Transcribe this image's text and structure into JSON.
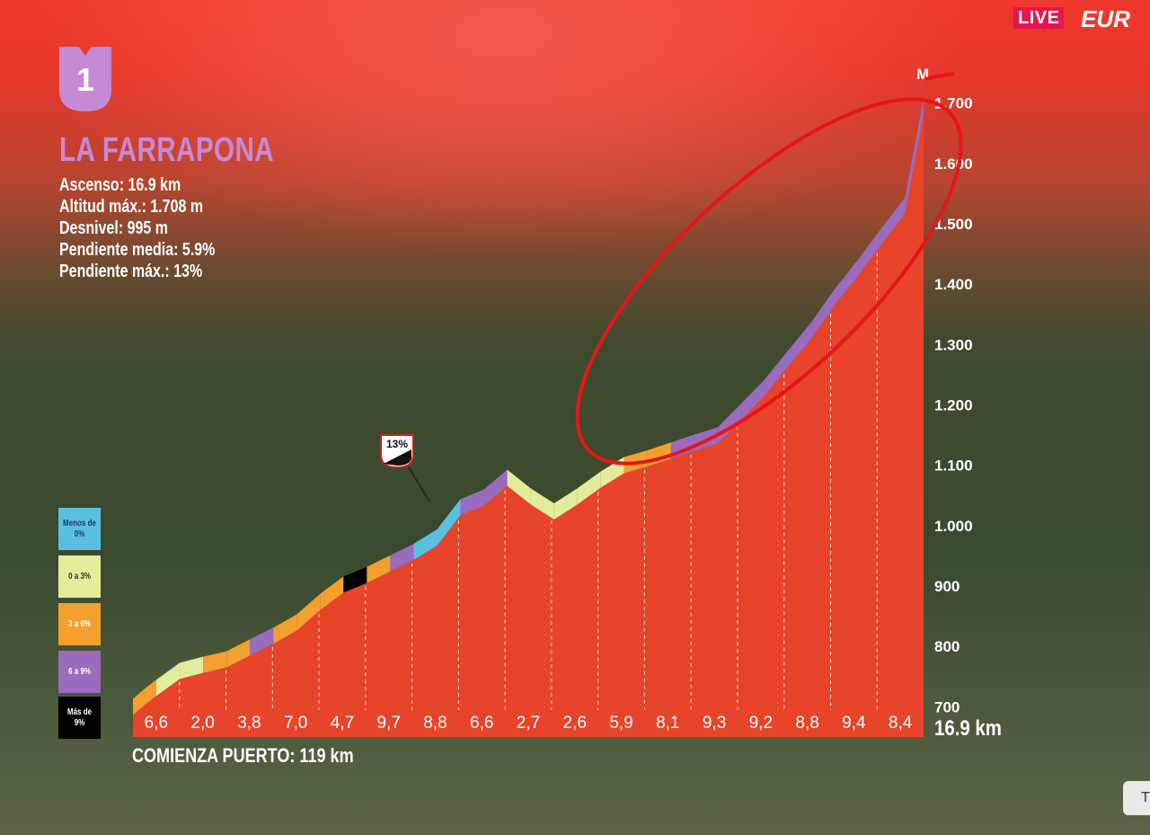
{
  "header": {
    "live_label": "LIVE",
    "brand": "EUR"
  },
  "badge": {
    "number": "1"
  },
  "climb": {
    "name": "LA FARRAPONA",
    "stats": [
      "Ascenso: 16.9 km",
      "Altitud máx.: 1.708 m",
      "Desnivel: 995 m",
      "Pendiente media: 5.9%",
      "Pendiente máx.: 13%"
    ],
    "start_label": "COMIENZA PUERTO: 119 km",
    "distance_label": "16.9 km",
    "max_marker": "13%",
    "summit_letter": "M"
  },
  "legend": [
    {
      "label": "Menos de 0%",
      "color": "#5bc0e0",
      "text_color": "#1a3a66"
    },
    {
      "label": "0 a 3%",
      "color": "#e3ec9a",
      "text_color": "#333"
    },
    {
      "label": "3 a 6%",
      "color": "#f3a02e",
      "text_color": "#fff"
    },
    {
      "label": "6 a 9%",
      "color": "#9a6bbf",
      "text_color": "#fff"
    },
    {
      "label": "Más de 9%",
      "color": "#000000",
      "text_color": "#fff"
    }
  ],
  "colors": {
    "profile_fill": "#e8442a",
    "band_lt0": "#5bc0e0",
    "band_0_3": "#e3ec9a",
    "band_3_6": "#f3a02e",
    "band_6_9": "#9a6bbf",
    "band_gt9": "#000000",
    "annotation_circle": "#e8141a",
    "badge": "#c58ad6"
  },
  "side_button": {
    "label": "T"
  },
  "chart_data": {
    "type": "area",
    "title": "LA FARRAPONA",
    "xlabel": "16.9 km",
    "ylabel": "",
    "ylim": [
      650,
      1780
    ],
    "y_ticks": [
      "700",
      "800",
      "900",
      "1.000",
      "1.100",
      "1.200",
      "1.300",
      "1.400",
      "1.500",
      "1.600",
      "1.700"
    ],
    "segment_gradients": [
      "6,6",
      "2,0",
      "3,8",
      "7,0",
      "4,7",
      "9,7",
      "8,8",
      "6,6",
      "2,7",
      "2,6",
      "5,9",
      "8,1",
      "9,3",
      "9,2",
      "8,8",
      "9,4",
      "8,4"
    ],
    "x_km": [
      0,
      0.25,
      0.5,
      1,
      1.5,
      2,
      2.5,
      3,
      3.5,
      4,
      4.5,
      5,
      5.5,
      6,
      6.5,
      7,
      7.5,
      8,
      8.5,
      9,
      9.5,
      10,
      10.5,
      11,
      11.5,
      12,
      12.5,
      13,
      13.5,
      14,
      14.5,
      15,
      15.5,
      16,
      16.5,
      16.9
    ],
    "elevation_m": [
      713,
      730,
      745,
      773,
      783,
      792,
      812,
      831,
      853,
      887,
      916,
      932,
      951,
      970,
      994,
      1044,
      1060,
      1093,
      1062,
      1037,
      1062,
      1090,
      1114,
      1125,
      1138,
      1151,
      1163,
      1202,
      1242,
      1290,
      1337,
      1392,
      1441,
      1493,
      1543,
      1708
    ],
    "color_bands": [
      "3 a 6%",
      "3 a 6%",
      "0 a 3%",
      "0 a 3%",
      "3 a 6%",
      "3 a 6%",
      "6 a 9%",
      "3 a 6%",
      "3 a 6%",
      "3 a 6%",
      "Más de 9%",
      "3 a 6%",
      "6 a 9%",
      "Menos de 0%",
      "Menos de 0%",
      "6 a 9%",
      "6 a 9%",
      "0 a 3%",
      "0 a 3%",
      "0 a 3%",
      "0 a 3%",
      "0 a 3%",
      "3 a 6%",
      "3 a 6%",
      "6 a 9%",
      "6 a 9%",
      "6 a 9%",
      "6 a 9%",
      "6 a 9%",
      "6 a 9%",
      "6 a 9%",
      "6 a 9%",
      "6 a 9%",
      "6 a 9%",
      "6 a 9%"
    ],
    "grid": true,
    "legend_position": "left"
  }
}
